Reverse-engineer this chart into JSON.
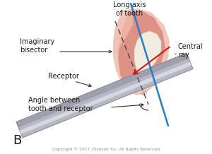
{
  "bg_color": "#ffffff",
  "label_B": "B",
  "label_long_axis": "Long axis\nof tooth",
  "label_bisector": "Imaginary\nbisector",
  "label_receptor": "Receptor",
  "label_central_ray": "Central\nray",
  "label_angle": "Angle between\ntooth and receptor",
  "copyright": "Copyright © 2017, Elsevier Inc. All Rights Reserved",
  "gum_color": "#e8a090",
  "gum_inner_color": "#d06860",
  "gum_outer_light": "#f0c0b0",
  "tooth_crown_color": "#f0ede0",
  "tooth_crown_edge": "#c8c0a0",
  "receptor_main": "#b8b8c4",
  "receptor_light": "#e0e0ea",
  "receptor_dark": "#888898",
  "long_axis_color": "#2080c8",
  "bisector_color": "#505050",
  "central_ray_color": "#cc1818",
  "angle_arc_color": "#505050",
  "text_color": "#1a1a1a",
  "font_size_labels": 7.0,
  "font_size_B": 13,
  "font_size_copyright": 4.2
}
